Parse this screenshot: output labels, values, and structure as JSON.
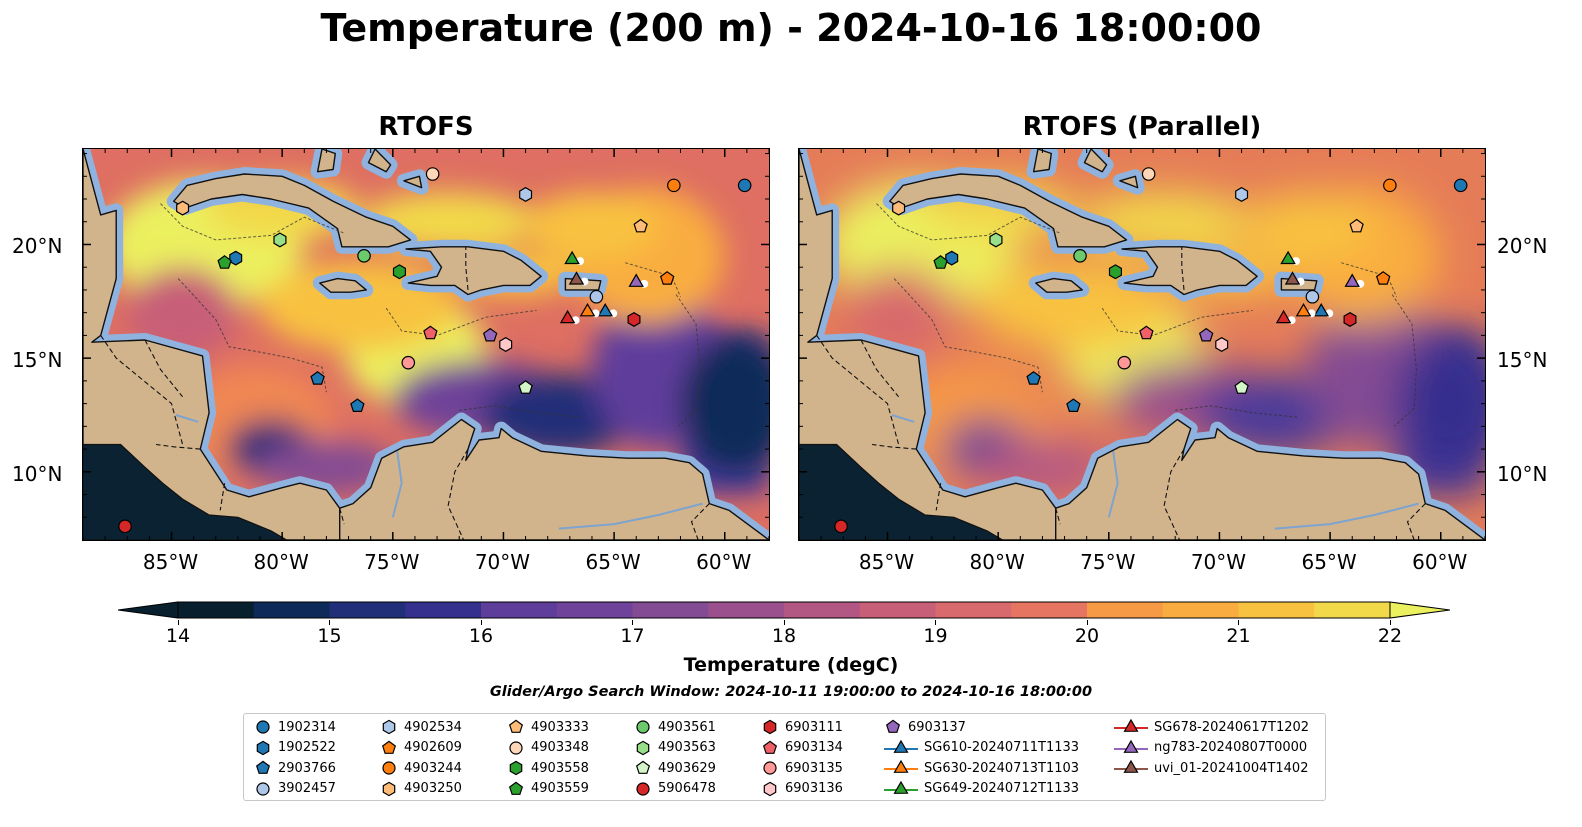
{
  "title": "Temperature (200 m) - 2024-10-16 18:00:00",
  "panels": [
    {
      "title": "RTOFS"
    },
    {
      "title": "RTOFS (Parallel)"
    }
  ],
  "lat_ticks": [
    "20°N",
    "15°N",
    "10°N"
  ],
  "lon_ticks": [
    "85°W",
    "80°W",
    "75°W",
    "70°W",
    "65°W",
    "60°W"
  ],
  "colorbar": {
    "label": "Temperature (degC)",
    "min": 14,
    "max": 22,
    "tick_labels": [
      "14",
      "15",
      "16",
      "17",
      "18",
      "19",
      "20",
      "21",
      "22"
    ],
    "colors": [
      "#08202e",
      "#0e2a58",
      "#202f78",
      "#352f8e",
      "#4c3a9a",
      "#5e3d9b",
      "#6e4399",
      "#834b93",
      "#9a508c",
      "#b25784",
      "#c75f78",
      "#d8696c",
      "#e57560",
      "#f08752",
      "#f79a45",
      "#f9ad40",
      "#f8c241",
      "#f2d94a",
      "#ebf05e"
    ]
  },
  "search_window": "Glider/Argo Search Window: 2024-10-11 19:00:00 to 2024-10-16 18:00:00",
  "legend": [
    {
      "label": "1902314",
      "marker": "circle",
      "color": "#1f77b4"
    },
    {
      "label": "1902522",
      "marker": "hexagon",
      "color": "#1f77b4"
    },
    {
      "label": "2903766",
      "marker": "pentagon",
      "color": "#1f77b4"
    },
    {
      "label": "3902457",
      "marker": "circle",
      "color": "#aec7e8"
    },
    {
      "label": "4902534",
      "marker": "hexagon",
      "color": "#aec7e8"
    },
    {
      "label": "4902609",
      "marker": "pentagon",
      "color": "#ff7f0e"
    },
    {
      "label": "4903244",
      "marker": "circle",
      "color": "#ff7f0e"
    },
    {
      "label": "4903250",
      "marker": "hexagon",
      "color": "#ffbb78"
    },
    {
      "label": "4903333",
      "marker": "pentagon",
      "color": "#ffbb78"
    },
    {
      "label": "4903348",
      "marker": "circle",
      "color": "#ffd7b8"
    },
    {
      "label": "4903558",
      "marker": "hexagon",
      "color": "#2ca02c"
    },
    {
      "label": "4903559",
      "marker": "pentagon",
      "color": "#2ca02c"
    },
    {
      "label": "4903561",
      "marker": "circle",
      "color": "#6cc96c"
    },
    {
      "label": "4903563",
      "marker": "hexagon",
      "color": "#98df8a"
    },
    {
      "label": "4903629",
      "marker": "pentagon",
      "color": "#d4f5c8"
    },
    {
      "label": "5906478",
      "marker": "circle",
      "color": "#d62728"
    },
    {
      "label": "6903111",
      "marker": "hexagon",
      "color": "#d62728"
    },
    {
      "label": "6903134",
      "marker": "pentagon",
      "color": "#f06068"
    },
    {
      "label": "6903135",
      "marker": "circle",
      "color": "#ff9896"
    },
    {
      "label": "6903136",
      "marker": "hexagon",
      "color": "#ffc8c8"
    },
    {
      "label": "6903137",
      "marker": "pentagon",
      "color": "#9467bd"
    },
    {
      "label": "SG610-20240711T1133",
      "marker": "triangle",
      "color": "#1f77b4"
    },
    {
      "label": "SG630-20240713T1103",
      "marker": "triangle",
      "color": "#ff7f0e"
    },
    {
      "label": "SG649-20240712T1133",
      "marker": "triangle",
      "color": "#2ca02c"
    },
    {
      "label": "SG678-20240617T1202",
      "marker": "triangle",
      "color": "#d62728"
    },
    {
      "label": "ng783-20240807T0000",
      "marker": "triangle",
      "color": "#9467bd"
    },
    {
      "label": "uvi_01-20241004T1402",
      "marker": "triangle",
      "color": "#8c564b"
    }
  ],
  "stations": [
    {
      "id": "1902314",
      "lon": -59.1,
      "lat": 22.6
    },
    {
      "id": "1902522",
      "lon": -82.1,
      "lat": 19.4
    },
    {
      "id": "2903766",
      "lon": -78.4,
      "lat": 14.1
    },
    {
      "id": "2903766b",
      "lon": -76.6,
      "lat": 12.9
    },
    {
      "id": "3902457",
      "lon": -65.8,
      "lat": 17.7
    },
    {
      "id": "4902534",
      "lon": -69.0,
      "lat": 22.2
    },
    {
      "id": "4902609",
      "lon": -62.6,
      "lat": 18.5
    },
    {
      "id": "4903244",
      "lon": -62.3,
      "lat": 22.6
    },
    {
      "id": "4903250",
      "lon": -84.5,
      "lat": 21.6
    },
    {
      "id": "4903333",
      "lon": -63.8,
      "lat": 20.8
    },
    {
      "id": "4903348",
      "lon": -73.2,
      "lat": 23.1
    },
    {
      "id": "4903558",
      "lon": -74.7,
      "lat": 18.8
    },
    {
      "id": "4903559",
      "lon": -82.6,
      "lat": 19.2
    },
    {
      "id": "4903561",
      "lon": -76.3,
      "lat": 19.5
    },
    {
      "id": "4903563",
      "lon": -80.1,
      "lat": 20.2
    },
    {
      "id": "4903629",
      "lon": -69.0,
      "lat": 13.7
    },
    {
      "id": "5906478",
      "lon": -87.1,
      "lat": 7.6
    },
    {
      "id": "6903111",
      "lon": -64.1,
      "lat": 16.7
    },
    {
      "id": "6903134",
      "lon": -73.3,
      "lat": 16.1
    },
    {
      "id": "6903135",
      "lon": -74.3,
      "lat": 14.8
    },
    {
      "id": "6903136",
      "lon": -69.9,
      "lat": 15.6
    },
    {
      "id": "6903137",
      "lon": -70.6,
      "lat": 16.0
    },
    {
      "id": "SG610-20240711T1133",
      "lon": -65.4,
      "lat": 17.1
    },
    {
      "id": "SG630-20240713T1103",
      "lon": -66.2,
      "lat": 17.1
    },
    {
      "id": "SG649-20240712T1133",
      "lon": -66.9,
      "lat": 19.4
    },
    {
      "id": "SG678-20240617T1202",
      "lon": -67.1,
      "lat": 16.8
    },
    {
      "id": "ng783-20240807T0000",
      "lon": -64.0,
      "lat": 18.4
    },
    {
      "id": "uvi_01-20241004T1402",
      "lon": -66.7,
      "lat": 18.5
    }
  ]
}
